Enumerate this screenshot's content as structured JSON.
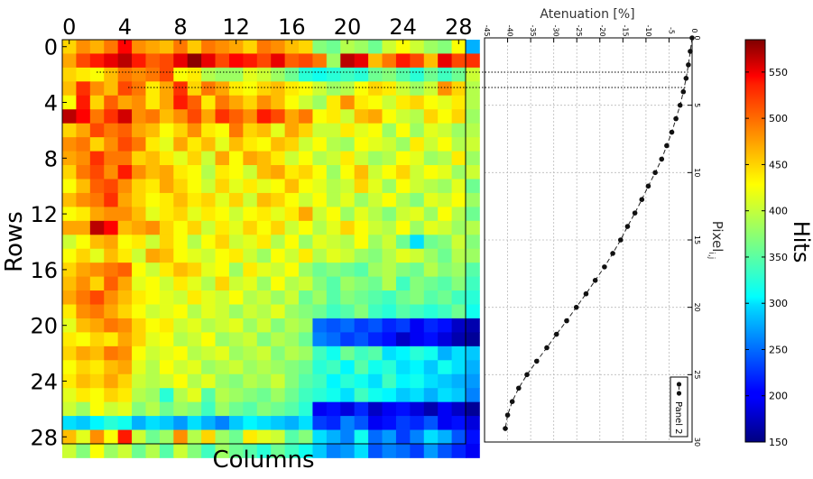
{
  "chart_data": [
    {
      "type": "heatmap",
      "xlabel": "Columns",
      "ylabel": "Rows",
      "x_ticks": [
        0,
        4,
        8,
        12,
        16,
        20,
        24,
        28
      ],
      "y_ticks": [
        0,
        4,
        8,
        12,
        16,
        20,
        24,
        28
      ],
      "x_range": [
        0,
        29
      ],
      "y_range": [
        0,
        29
      ],
      "colorbar": {
        "label": "Hits",
        "range": [
          150,
          585
        ],
        "ticks": [
          150,
          200,
          250,
          300,
          350,
          400,
          450,
          500,
          550
        ],
        "colormap": "jet"
      },
      "matrix": [
        [
          440,
          470,
          455,
          480,
          530,
          470,
          460,
          450,
          480,
          445,
          480,
          470,
          460,
          440,
          480,
          470,
          450,
          440,
          370,
          360,
          390,
          380,
          360,
          400,
          420,
          400,
          380,
          370,
          420,
          280
        ],
        [
          460,
          500,
          520,
          540,
          560,
          520,
          490,
          500,
          540,
          580,
          540,
          500,
          530,
          520,
          500,
          540,
          490,
          500,
          480,
          380,
          560,
          540,
          450,
          480,
          520,
          500,
          450,
          540,
          500,
          510
        ],
        [
          440,
          430,
          420,
          450,
          480,
          470,
          480,
          500,
          420,
          430,
          390,
          380,
          380,
          410,
          400,
          380,
          360,
          330,
          320,
          330,
          340,
          330,
          360,
          370,
          350,
          330,
          360,
          340,
          360,
          400
        ],
        [
          450,
          510,
          470,
          450,
          500,
          480,
          430,
          460,
          510,
          440,
          480,
          460,
          430,
          420,
          440,
          450,
          430,
          420,
          400,
          380,
          390,
          420,
          440,
          430,
          400,
          380,
          400,
          470,
          440,
          390
        ],
        [
          420,
          520,
          440,
          490,
          460,
          470,
          430,
          460,
          520,
          490,
          430,
          480,
          460,
          440,
          470,
          450,
          420,
          400,
          380,
          430,
          470,
          430,
          420,
          400,
          430,
          440,
          420,
          410,
          430,
          390
        ],
        [
          560,
          530,
          480,
          510,
          550,
          470,
          480,
          450,
          470,
          500,
          460,
          510,
          490,
          470,
          520,
          500,
          460,
          480,
          420,
          430,
          400,
          450,
          460,
          420,
          400,
          390,
          440,
          420,
          440,
          380
        ],
        [
          440,
          460,
          500,
          480,
          490,
          460,
          450,
          420,
          440,
          470,
          430,
          420,
          480,
          440,
          450,
          410,
          460,
          440,
          400,
          400,
          430,
          410,
          420,
          380,
          420,
          380,
          410,
          400,
          380,
          390
        ],
        [
          470,
          480,
          440,
          470,
          500,
          480,
          430,
          410,
          460,
          430,
          450,
          410,
          450,
          430,
          420,
          450,
          440,
          400,
          420,
          390,
          380,
          420,
          410,
          400,
          380,
          430,
          400,
          420,
          390,
          400
        ],
        [
          460,
          470,
          510,
          480,
          480,
          440,
          450,
          430,
          410,
          440,
          400,
          460,
          420,
          460,
          450,
          430,
          400,
          420,
          390,
          400,
          430,
          400,
          380,
          390,
          420,
          410,
          380,
          390,
          430,
          380
        ],
        [
          440,
          480,
          500,
          470,
          520,
          470,
          450,
          460,
          430,
          420,
          390,
          430,
          420,
          400,
          450,
          460,
          430,
          440,
          420,
          380,
          420,
          450,
          400,
          420,
          440,
          400,
          420,
          410,
          380,
          400
        ],
        [
          420,
          450,
          490,
          500,
          470,
          440,
          430,
          460,
          440,
          420,
          400,
          440,
          410,
          430,
          410,
          420,
          450,
          420,
          410,
          390,
          400,
          440,
          410,
          380,
          420,
          400,
          390,
          380,
          410,
          360
        ],
        [
          450,
          470,
          480,
          510,
          460,
          440,
          420,
          430,
          450,
          430,
          440,
          410,
          440,
          400,
          450,
          440,
          420,
          400,
          420,
          390,
          410,
          380,
          400,
          420,
          390,
          370,
          410,
          400,
          420,
          380
        ],
        [
          420,
          430,
          460,
          470,
          470,
          450,
          410,
          430,
          440,
          410,
          430,
          420,
          400,
          420,
          430,
          410,
          430,
          460,
          400,
          420,
          380,
          410,
          390,
          370,
          400,
          410,
          380,
          420,
          390,
          360
        ],
        [
          460,
          460,
          560,
          530,
          450,
          460,
          470,
          440,
          420,
          440,
          400,
          430,
          410,
          440,
          420,
          440,
          400,
          420,
          390,
          410,
          440,
          420,
          400,
          390,
          420,
          380,
          410,
          400,
          380,
          390
        ],
        [
          400,
          420,
          450,
          460,
          420,
          430,
          400,
          440,
          420,
          390,
          420,
          440,
          400,
          410,
          430,
          390,
          420,
          380,
          410,
          400,
          390,
          420,
          380,
          400,
          360,
          300,
          360,
          370,
          400,
          370
        ],
        [
          420,
          440,
          410,
          450,
          430,
          400,
          460,
          450,
          420,
          410,
          400,
          420,
          430,
          400,
          380,
          420,
          400,
          430,
          390,
          410,
          400,
          380,
          370,
          390,
          410,
          400,
          380,
          360,
          390,
          380
        ],
        [
          440,
          460,
          470,
          480,
          490,
          420,
          400,
          430,
          450,
          440,
          410,
          420,
          380,
          430,
          410,
          400,
          420,
          380,
          360,
          370,
          360,
          350,
          380,
          390,
          370,
          360,
          390,
          370,
          380,
          350
        ],
        [
          450,
          470,
          440,
          490,
          460,
          410,
          420,
          400,
          430,
          410,
          390,
          440,
          400,
          410,
          380,
          420,
          390,
          400,
          370,
          350,
          380,
          370,
          360,
          390,
          340,
          370,
          360,
          350,
          370,
          340
        ],
        [
          460,
          480,
          500,
          470,
          450,
          430,
          420,
          410,
          400,
          430,
          410,
          400,
          420,
          390,
          400,
          380,
          400,
          360,
          380,
          350,
          370,
          360,
          350,
          340,
          360,
          370,
          350,
          360,
          340,
          330
        ],
        [
          430,
          470,
          480,
          460,
          440,
          420,
          400,
          410,
          420,
          390,
          410,
          400,
          380,
          400,
          390,
          410,
          380,
          370,
          360,
          340,
          350,
          370,
          340,
          330,
          350,
          340,
          330,
          340,
          360,
          320
        ],
        [
          410,
          450,
          460,
          480,
          470,
          440,
          420,
          430,
          400,
          410,
          390,
          400,
          410,
          380,
          400,
          370,
          390,
          380,
          250,
          240,
          250,
          230,
          240,
          220,
          230,
          200,
          220,
          210,
          180,
          170
        ],
        [
          430,
          420,
          440,
          430,
          460,
          440,
          410,
          420,
          390,
          400,
          420,
          380,
          390,
          400,
          370,
          390,
          380,
          360,
          260,
          250,
          230,
          240,
          220,
          210,
          180,
          200,
          210,
          190,
          170,
          160
        ],
        [
          440,
          460,
          450,
          480,
          470,
          420,
          400,
          410,
          420,
          390,
          400,
          410,
          380,
          390,
          400,
          370,
          390,
          380,
          340,
          320,
          360,
          340,
          350,
          300,
          310,
          330,
          320,
          280,
          300,
          290
        ],
        [
          420,
          440,
          430,
          450,
          460,
          410,
          390,
          420,
          400,
          410,
          380,
          390,
          400,
          380,
          390,
          380,
          370,
          360,
          330,
          340,
          310,
          350,
          320,
          330,
          300,
          310,
          290,
          320,
          300,
          280
        ],
        [
          430,
          450,
          440,
          460,
          440,
          400,
          390,
          400,
          420,
          390,
          410,
          380,
          370,
          390,
          380,
          400,
          370,
          350,
          340,
          310,
          330,
          320,
          300,
          340,
          310,
          320,
          300,
          290,
          280,
          270
        ],
        [
          410,
          430,
          420,
          440,
          430,
          390,
          380,
          330,
          390,
          410,
          350,
          390,
          380,
          370,
          360,
          380,
          360,
          340,
          330,
          320,
          300,
          340,
          320,
          310,
          290,
          300,
          280,
          300,
          290,
          260
        ],
        [
          400,
          380,
          420,
          400,
          410,
          370,
          390,
          360,
          380,
          370,
          340,
          380,
          360,
          350,
          370,
          360,
          350,
          330,
          200,
          210,
          190,
          220,
          180,
          200,
          210,
          190,
          170,
          200,
          180,
          160
        ],
        [
          300,
          290,
          310,
          330,
          320,
          280,
          300,
          290,
          270,
          300,
          280,
          260,
          290,
          310,
          300,
          290,
          280,
          300,
          230,
          220,
          260,
          240,
          200,
          210,
          230,
          220,
          240,
          200,
          210,
          190
        ],
        [
          450,
          410,
          470,
          420,
          520,
          400,
          360,
          380,
          470,
          390,
          440,
          380,
          360,
          430,
          410,
          400,
          350,
          370,
          300,
          280,
          260,
          320,
          250,
          270,
          230,
          260,
          300,
          280,
          240,
          210
        ],
        [
          400,
          370,
          420,
          380,
          400,
          360,
          390,
          350,
          400,
          370,
          340,
          380,
          360,
          350,
          330,
          360,
          340,
          320,
          290,
          260,
          270,
          300,
          240,
          260,
          250,
          230,
          270,
          240,
          220,
          200
        ]
      ]
    },
    {
      "type": "line",
      "xlabel": "Atenuation [%]",
      "ylabel": "Pixel",
      "ylabel_subscript": "i,j",
      "x_ticks": [
        -45,
        -40,
        -35,
        -30,
        -25,
        -20,
        -15,
        -10,
        -5,
        0
      ],
      "y_ticks": [
        0,
        5,
        10,
        15,
        20,
        25,
        30
      ],
      "xlim": [
        -45,
        0
      ],
      "ylim": [
        0,
        30
      ],
      "grid": true,
      "legend_position": "bottom-right",
      "series": [
        {
          "name": "Panel 2",
          "pixel": [
            0,
            1,
            2,
            3,
            4,
            5,
            6,
            7,
            8,
            9,
            10,
            11,
            12,
            13,
            14,
            15,
            16,
            17,
            18,
            19,
            20,
            21,
            22,
            23,
            24,
            25,
            26,
            27,
            28,
            29
          ],
          "attenuation": [
            0,
            -0.4,
            -0.8,
            -1.3,
            -1.9,
            -2.6,
            -3.5,
            -4.4,
            -5.5,
            -6.6,
            -8.0,
            -9.5,
            -10.9,
            -12.4,
            -14.0,
            -15.5,
            -17.2,
            -19.0,
            -21.0,
            -23.0,
            -25.1,
            -27.2,
            -29.4,
            -31.5,
            -33.7,
            -35.8,
            -37.6,
            -39.0,
            -40.0,
            -40.5
          ]
        }
      ]
    }
  ]
}
